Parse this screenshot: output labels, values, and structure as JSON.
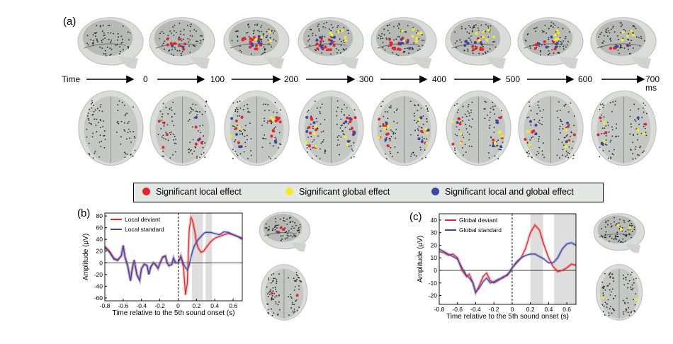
{
  "panel_labels": {
    "a": "(a)",
    "b": "(b)",
    "c": "(c)"
  },
  "timeline": {
    "axis_label": "Time",
    "ticks": [
      "0",
      "100",
      "200",
      "300",
      "400",
      "500",
      "600",
      "700 ms"
    ]
  },
  "legend": {
    "items": [
      {
        "label": "Significant local effect",
        "color": "#e8232a"
      },
      {
        "label": "Significant global effect",
        "color": "#f3ea2a"
      },
      {
        "label": "Significant local and global effect",
        "color": "#3a47a8"
      }
    ]
  },
  "chart_data": [
    {
      "type": "line",
      "xlabel": "Time relative to the 5th sound onset (s)",
      "ylabel": "Amplitude (µV)",
      "xlim": [
        -0.8,
        0.7
      ],
      "ylim": [
        -65,
        85
      ],
      "xticks": [
        -0.8,
        -0.6,
        -0.4,
        -0.2,
        0,
        0.2,
        0.4,
        0.6
      ],
      "xtick_labels": [
        "-0.8",
        "-0.6",
        "-0.4",
        "-0.2",
        "0",
        "0.2",
        "0.4",
        "0.6"
      ],
      "yticks": [
        -60,
        -40,
        -20,
        0,
        20,
        40,
        60,
        80
      ],
      "ytick_labels": [
        "-60",
        "-40",
        "-20",
        "0",
        "20",
        "40",
        "60",
        "80"
      ],
      "shaded_intervals": [
        [
          0.15,
          0.27
        ],
        [
          0.3,
          0.37
        ]
      ],
      "legend_position": "top-left",
      "series": [
        {
          "name": "Local deviant",
          "color": "#e8232a",
          "x": [
            -0.8,
            -0.75,
            -0.7,
            -0.66,
            -0.62,
            -0.6,
            -0.58,
            -0.55,
            -0.52,
            -0.5,
            -0.48,
            -0.45,
            -0.42,
            -0.4,
            -0.37,
            -0.34,
            -0.32,
            -0.3,
            -0.27,
            -0.24,
            -0.22,
            -0.2,
            -0.17,
            -0.14,
            -0.12,
            -0.1,
            -0.07,
            -0.05,
            -0.03,
            0,
            0.03,
            0.06,
            0.08,
            0.1,
            0.12,
            0.14,
            0.16,
            0.18,
            0.2,
            0.22,
            0.25,
            0.28,
            0.3,
            0.35,
            0.4,
            0.45,
            0.5,
            0.55,
            0.6,
            0.65,
            0.7
          ],
          "y": [
            28,
            20,
            8,
            5,
            12,
            30,
            10,
            -5,
            -30,
            -10,
            5,
            -20,
            -30,
            -10,
            -2,
            -5,
            -20,
            -8,
            0,
            -5,
            -10,
            -2,
            10,
            12,
            0,
            -5,
            -3,
            8,
            0,
            0,
            12,
            -10,
            -55,
            -35,
            55,
            78,
            70,
            55,
            35,
            25,
            18,
            20,
            25,
            35,
            42,
            45,
            48,
            50,
            48,
            45,
            40
          ]
        },
        {
          "name": "Local standard",
          "color": "#3a47a8",
          "x": [
            -0.8,
            -0.75,
            -0.7,
            -0.66,
            -0.62,
            -0.6,
            -0.58,
            -0.55,
            -0.52,
            -0.5,
            -0.48,
            -0.45,
            -0.42,
            -0.4,
            -0.37,
            -0.34,
            -0.32,
            -0.3,
            -0.27,
            -0.24,
            -0.22,
            -0.2,
            -0.17,
            -0.14,
            -0.12,
            -0.1,
            -0.07,
            -0.05,
            -0.03,
            0,
            0.03,
            0.06,
            0.08,
            0.1,
            0.12,
            0.14,
            0.16,
            0.18,
            0.2,
            0.22,
            0.25,
            0.28,
            0.3,
            0.35,
            0.4,
            0.45,
            0.5,
            0.55,
            0.6,
            0.65,
            0.7
          ],
          "y": [
            26,
            18,
            6,
            4,
            12,
            29,
            9,
            -6,
            -31,
            -9,
            4,
            -21,
            -30,
            -10,
            -3,
            -4,
            -20,
            -7,
            0,
            -4,
            -9,
            -1,
            9,
            11,
            0,
            -5,
            -3,
            8,
            0,
            0,
            10,
            -2,
            -8,
            -12,
            -5,
            10,
            22,
            30,
            35,
            40,
            45,
            50,
            52,
            52,
            50,
            48,
            53,
            52,
            48,
            45,
            42
          ]
        }
      ]
    },
    {
      "type": "line",
      "xlabel": "Time relative to the 5th sound onset (s)",
      "ylabel": "Amplitude (µV)",
      "xlim": [
        -0.8,
        0.7
      ],
      "ylim": [
        -27,
        45
      ],
      "xticks": [
        -0.8,
        -0.6,
        -0.4,
        -0.2,
        0,
        0.2,
        0.4,
        0.6
      ],
      "xtick_labels": [
        "-0.8",
        "-0.6",
        "-0.4",
        "-0.2",
        "0",
        "0.2",
        "0.4",
        "0.6"
      ],
      "yticks": [
        -20,
        -10,
        0,
        10,
        20,
        30,
        40
      ],
      "ytick_labels": [
        "-20",
        "-10",
        "0",
        "10",
        "20",
        "30",
        "40"
      ],
      "shaded_intervals": [
        [
          0.2,
          0.34
        ],
        [
          0.46,
          0.7
        ]
      ],
      "legend_position": "top-left",
      "series": [
        {
          "name": "Global deviant",
          "color": "#e8232a",
          "x": [
            -0.8,
            -0.75,
            -0.7,
            -0.65,
            -0.6,
            -0.55,
            -0.5,
            -0.47,
            -0.43,
            -0.4,
            -0.36,
            -0.32,
            -0.28,
            -0.24,
            -0.2,
            -0.15,
            -0.1,
            -0.05,
            -0.02,
            0,
            0.05,
            0.1,
            0.15,
            0.2,
            0.25,
            0.3,
            0.35,
            0.4,
            0.45,
            0.5,
            0.55,
            0.6,
            0.65,
            0.7
          ],
          "y": [
            15,
            14,
            12,
            13,
            10,
            0,
            -5,
            -3,
            -10,
            -18,
            -12,
            -5,
            -2,
            -8,
            -10,
            -8,
            -5,
            -4,
            0,
            2,
            6,
            10,
            18,
            30,
            36,
            32,
            20,
            10,
            3,
            -1,
            0,
            2,
            5,
            4
          ]
        },
        {
          "name": "Global standard",
          "color": "#3a47a8",
          "x": [
            -0.8,
            -0.75,
            -0.7,
            -0.65,
            -0.6,
            -0.55,
            -0.5,
            -0.47,
            -0.43,
            -0.4,
            -0.36,
            -0.32,
            -0.28,
            -0.24,
            -0.2,
            -0.15,
            -0.1,
            -0.05,
            -0.02,
            0,
            0.05,
            0.1,
            0.15,
            0.2,
            0.25,
            0.3,
            0.35,
            0.4,
            0.45,
            0.5,
            0.55,
            0.6,
            0.65,
            0.7
          ],
          "y": [
            17,
            15,
            13,
            11,
            9,
            2,
            -4,
            -6,
            -10,
            -17,
            -14,
            -9,
            -6,
            -10,
            -9,
            -7,
            -6,
            -3,
            -1,
            2,
            7,
            10,
            12,
            13,
            13,
            11,
            9,
            6,
            6,
            10,
            17,
            21,
            22,
            20
          ]
        }
      ]
    }
  ]
}
